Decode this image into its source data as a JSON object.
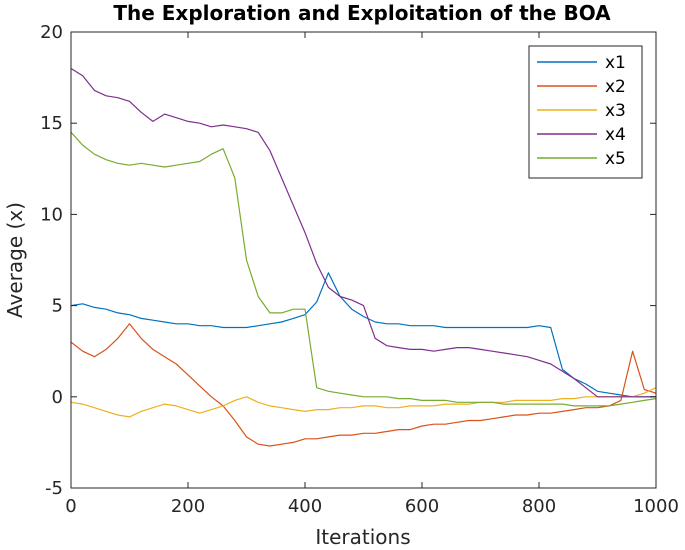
{
  "chart_data": {
    "type": "line",
    "title": "The Exploration and Exploitation of the BOA",
    "xlabel": "Iterations",
    "ylabel": "Average (x)",
    "xlim": [
      0,
      1000
    ],
    "ylim": [
      -5,
      20
    ],
    "xticks": [
      0,
      200,
      400,
      600,
      800,
      1000
    ],
    "xtick_labels": [
      "0",
      "200",
      "400",
      "600",
      "800",
      "1000"
    ],
    "yticks": [
      -5,
      0,
      5,
      10,
      15,
      20
    ],
    "ytick_labels": [
      "-5",
      "0",
      "5",
      "10",
      "15",
      "20"
    ],
    "grid": false,
    "legend_position": "top-right",
    "x": [
      0,
      20,
      40,
      60,
      80,
      100,
      120,
      140,
      160,
      180,
      200,
      220,
      240,
      260,
      280,
      300,
      320,
      340,
      360,
      380,
      400,
      420,
      440,
      460,
      480,
      500,
      520,
      540,
      560,
      580,
      600,
      620,
      640,
      660,
      680,
      700,
      720,
      740,
      760,
      780,
      800,
      820,
      840,
      860,
      880,
      900,
      920,
      940,
      960,
      980,
      1000
    ],
    "series": [
      {
        "name": "x1",
        "color": "#0072BD",
        "values": [
          5.0,
          5.1,
          4.9,
          4.8,
          4.6,
          4.5,
          4.3,
          4.2,
          4.1,
          4.0,
          4.0,
          3.9,
          3.9,
          3.8,
          3.8,
          3.8,
          3.9,
          4.0,
          4.1,
          4.3,
          4.5,
          5.2,
          6.8,
          5.5,
          4.8,
          4.4,
          4.1,
          4.0,
          4.0,
          3.9,
          3.9,
          3.9,
          3.8,
          3.8,
          3.8,
          3.8,
          3.8,
          3.8,
          3.8,
          3.8,
          3.9,
          3.8,
          1.5,
          1.0,
          0.7,
          0.3,
          0.2,
          0.1,
          0.0,
          0.0,
          0.0
        ]
      },
      {
        "name": "x2",
        "color": "#D95319",
        "values": [
          3.0,
          2.5,
          2.2,
          2.6,
          3.2,
          4.0,
          3.2,
          2.6,
          2.2,
          1.8,
          1.2,
          0.6,
          0.0,
          -0.5,
          -1.3,
          -2.2,
          -2.6,
          -2.7,
          -2.6,
          -2.5,
          -2.3,
          -2.3,
          -2.2,
          -2.1,
          -2.1,
          -2.0,
          -2.0,
          -1.9,
          -1.8,
          -1.8,
          -1.6,
          -1.5,
          -1.5,
          -1.4,
          -1.3,
          -1.3,
          -1.2,
          -1.1,
          -1.0,
          -1.0,
          -0.9,
          -0.9,
          -0.8,
          -0.7,
          -0.6,
          -0.6,
          -0.5,
          -0.2,
          2.5,
          0.4,
          0.2
        ]
      },
      {
        "name": "x3",
        "color": "#EDB120",
        "values": [
          -0.3,
          -0.4,
          -0.6,
          -0.8,
          -1.0,
          -1.1,
          -0.8,
          -0.6,
          -0.4,
          -0.5,
          -0.7,
          -0.9,
          -0.7,
          -0.5,
          -0.2,
          0.0,
          -0.3,
          -0.5,
          -0.6,
          -0.7,
          -0.8,
          -0.7,
          -0.7,
          -0.6,
          -0.6,
          -0.5,
          -0.5,
          -0.6,
          -0.6,
          -0.5,
          -0.5,
          -0.5,
          -0.4,
          -0.4,
          -0.4,
          -0.3,
          -0.3,
          -0.3,
          -0.2,
          -0.2,
          -0.2,
          -0.2,
          -0.1,
          -0.1,
          0.0,
          0.0,
          0.0,
          0.0,
          0.0,
          0.2,
          0.5
        ]
      },
      {
        "name": "x4",
        "color": "#7E2F8E",
        "values": [
          18.0,
          17.6,
          16.8,
          16.5,
          16.4,
          16.2,
          15.6,
          15.1,
          15.5,
          15.3,
          15.1,
          15.0,
          14.8,
          14.9,
          14.8,
          14.7,
          14.5,
          13.5,
          12.0,
          10.5,
          9.0,
          7.3,
          6.0,
          5.5,
          5.3,
          5.0,
          3.2,
          2.8,
          2.7,
          2.6,
          2.6,
          2.5,
          2.6,
          2.7,
          2.7,
          2.6,
          2.5,
          2.4,
          2.3,
          2.2,
          2.0,
          1.8,
          1.4,
          1.0,
          0.5,
          0.0,
          0.0,
          0.0,
          0.0,
          0.0,
          0.0
        ]
      },
      {
        "name": "x5",
        "color": "#77AC30",
        "values": [
          14.5,
          13.8,
          13.3,
          13.0,
          12.8,
          12.7,
          12.8,
          12.7,
          12.6,
          12.7,
          12.8,
          12.9,
          13.3,
          13.6,
          12.0,
          7.5,
          5.5,
          4.6,
          4.6,
          4.8,
          4.8,
          0.5,
          0.3,
          0.2,
          0.1,
          0.0,
          0.0,
          0.0,
          -0.1,
          -0.1,
          -0.2,
          -0.2,
          -0.2,
          -0.3,
          -0.3,
          -0.3,
          -0.3,
          -0.4,
          -0.4,
          -0.4,
          -0.4,
          -0.4,
          -0.4,
          -0.5,
          -0.5,
          -0.5,
          -0.5,
          -0.4,
          -0.3,
          -0.2,
          -0.1
        ]
      }
    ]
  }
}
